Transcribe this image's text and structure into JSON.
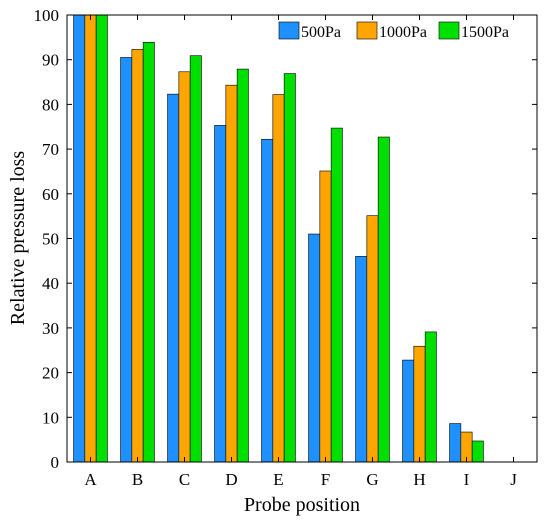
{
  "chart_data": {
    "type": "bar",
    "xlabel": "Probe position",
    "ylabel": "Relative pressure loss",
    "categories": [
      "A",
      "B",
      "C",
      "D",
      "E",
      "F",
      "G",
      "H",
      "I",
      "J"
    ],
    "ylim": [
      0,
      100
    ],
    "yticks": [
      0,
      10,
      20,
      30,
      40,
      50,
      60,
      70,
      80,
      90,
      100
    ],
    "grid": false,
    "legend_position": "top-right",
    "series": [
      {
        "name": "500Pa",
        "color": "#1E90FF",
        "values": [
          100,
          90.5,
          82.3,
          75.3,
          72.2,
          51.0,
          46.0,
          22.8,
          8.6,
          0
        ]
      },
      {
        "name": "1000Pa",
        "color": "#FFA500",
        "values": [
          100,
          92.3,
          87.3,
          84.3,
          82.2,
          65.1,
          55.1,
          25.9,
          6.7,
          0
        ]
      },
      {
        "name": "1500Pa",
        "color": "#00E000",
        "values": [
          100,
          93.9,
          90.9,
          87.9,
          86.9,
          74.7,
          72.7,
          29.1,
          4.7,
          0
        ]
      }
    ]
  }
}
